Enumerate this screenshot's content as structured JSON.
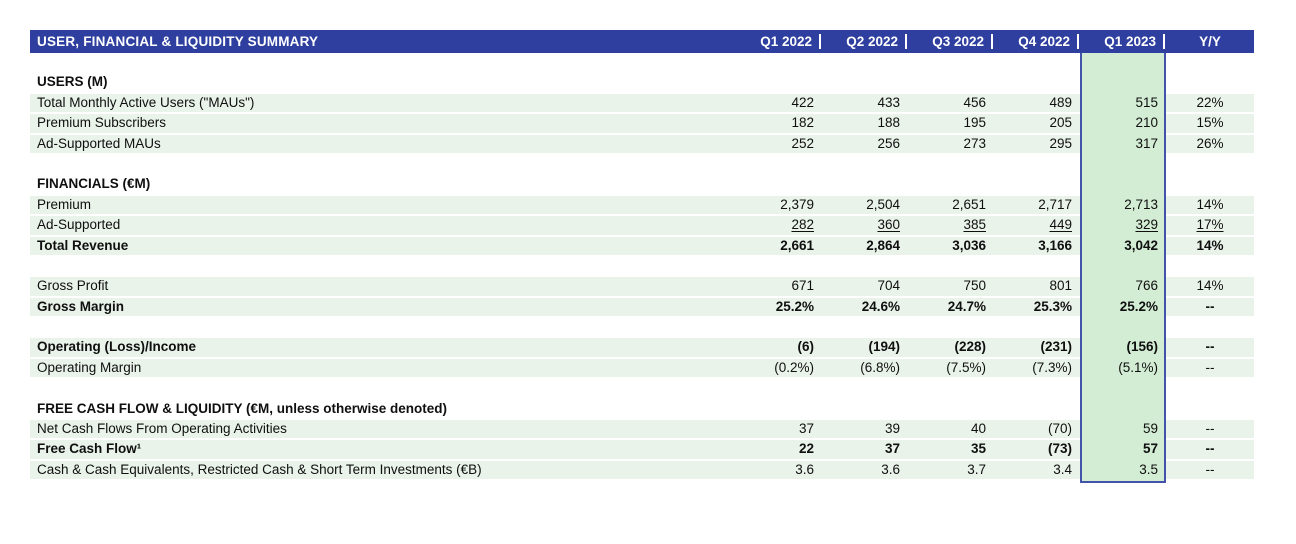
{
  "table": {
    "title": "USER, FINANCIAL & LIQUIDITY SUMMARY",
    "columns": [
      "Q1 2022",
      "Q2 2022",
      "Q3 2022",
      "Q4 2022",
      "Q1 2023",
      "Y/Y"
    ],
    "highlight_column": "Q1 2023",
    "colors": {
      "header_blue": "#2e3fa0",
      "row_green": "#e9f3e9",
      "highlight_green": "#d3edd4",
      "highlight_border_blue": "#4253a9",
      "text": "#0f0f0f"
    },
    "rows": [
      {
        "type": "blank"
      },
      {
        "type": "section",
        "label": "USERS (M)"
      },
      {
        "type": "data",
        "label": "Total Monthly Active Users (\"MAUs\")",
        "values": [
          "422",
          "433",
          "456",
          "489",
          "515",
          "22%"
        ]
      },
      {
        "type": "data",
        "label": "Premium Subscribers",
        "values": [
          "182",
          "188",
          "195",
          "205",
          "210",
          "15%"
        ]
      },
      {
        "type": "data",
        "label": "Ad-Supported MAUs",
        "values": [
          "252",
          "256",
          "273",
          "295",
          "317",
          "26%"
        ]
      },
      {
        "type": "blank"
      },
      {
        "type": "section",
        "label": "FINANCIALS (€M)"
      },
      {
        "type": "data",
        "label": "Premium",
        "values": [
          "2,379",
          "2,504",
          "2,651",
          "2,717",
          "2,713",
          "14%"
        ]
      },
      {
        "type": "data",
        "label": "Ad-Supported",
        "underline": true,
        "values": [
          "282",
          "360",
          "385",
          "449",
          "329",
          "17%"
        ]
      },
      {
        "type": "data",
        "label": "Total Revenue",
        "bold": true,
        "values": [
          "2,661",
          "2,864",
          "3,036",
          "3,166",
          "3,042",
          "14%"
        ]
      },
      {
        "type": "blank"
      },
      {
        "type": "data",
        "label": "Gross Profit",
        "values": [
          "671",
          "704",
          "750",
          "801",
          "766",
          "14%"
        ]
      },
      {
        "type": "data",
        "label": "Gross Margin",
        "bold": true,
        "values": [
          "25.2%",
          "24.6%",
          "24.7%",
          "25.3%",
          "25.2%",
          "--"
        ]
      },
      {
        "type": "blank"
      },
      {
        "type": "data",
        "label": "Operating (Loss)/Income",
        "bold": true,
        "values": [
          "(6)",
          "(194)",
          "(228)",
          "(231)",
          "(156)",
          "--"
        ]
      },
      {
        "type": "data",
        "label": "Operating Margin",
        "values": [
          "(0.2%)",
          "(6.8%)",
          "(7.5%)",
          "(7.3%)",
          "(5.1%)",
          "--"
        ]
      },
      {
        "type": "blank"
      },
      {
        "type": "section",
        "label": "FREE CASH FLOW & LIQUIDITY (€M, unless otherwise denoted)"
      },
      {
        "type": "data",
        "label": "Net Cash Flows From Operating Activities",
        "values": [
          "37",
          "39",
          "40",
          "(70)",
          "59",
          "--"
        ]
      },
      {
        "type": "data",
        "label": "Free Cash Flow¹",
        "bold": true,
        "values": [
          "22",
          "37",
          "35",
          "(73)",
          "57",
          "--"
        ]
      },
      {
        "type": "data",
        "label": "Cash & Cash Equivalents, Restricted Cash & Short Term Investments (€B)",
        "values": [
          "3.6",
          "3.6",
          "3.7",
          "3.4",
          "3.5",
          "--"
        ]
      }
    ]
  }
}
